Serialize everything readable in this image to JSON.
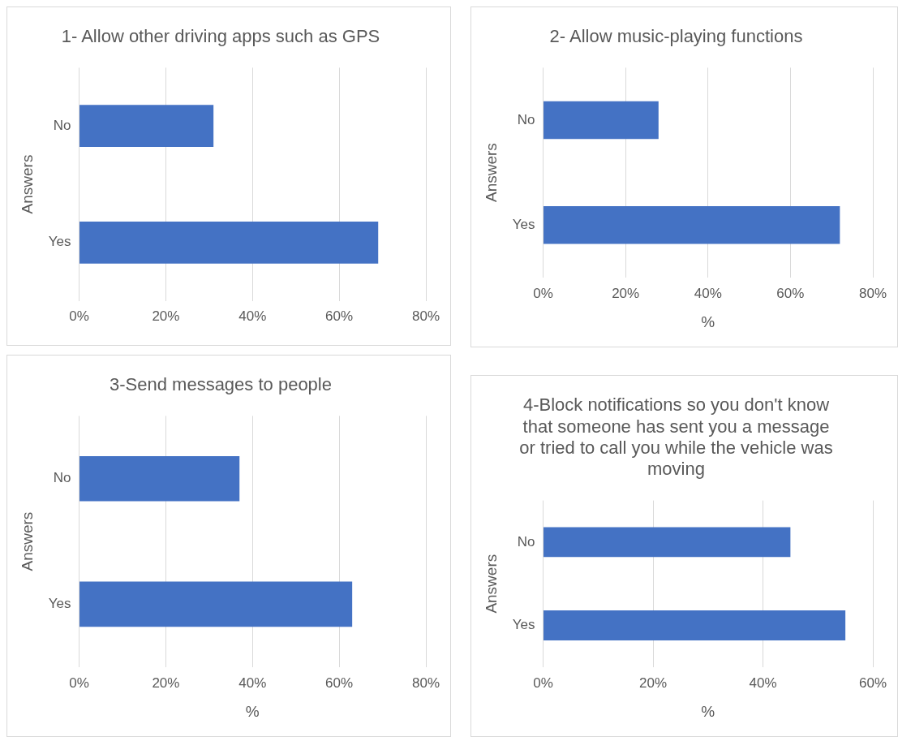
{
  "chart_data": [
    {
      "type": "bar",
      "orientation": "horizontal",
      "title": "1- Allow other driving apps such as GPS",
      "ylabel": "Answers",
      "categories": [
        "No",
        "Yes"
      ],
      "values": [
        31,
        69
      ],
      "color": "#4472c4",
      "xlim": [
        0,
        80
      ],
      "xticks": [
        {
          "value": 0,
          "label": "0%"
        },
        {
          "value": 20,
          "label": "20%"
        },
        {
          "value": 40,
          "label": "40%"
        },
        {
          "value": 60,
          "label": "60%"
        },
        {
          "value": 80,
          "label": "80%"
        }
      ],
      "grid": "x"
    },
    {
      "type": "bar",
      "orientation": "horizontal",
      "title": "2- Allow music-playing functions",
      "ylabel": "Answers",
      "xlabel": "%",
      "categories": [
        "No",
        "Yes"
      ],
      "values": [
        28,
        72
      ],
      "color": "#4472c4",
      "xlim": [
        0,
        80
      ],
      "xticks": [
        {
          "value": 0,
          "label": "0%"
        },
        {
          "value": 20,
          "label": "20%"
        },
        {
          "value": 40,
          "label": "40%"
        },
        {
          "value": 60,
          "label": "60%"
        },
        {
          "value": 80,
          "label": "80%"
        }
      ],
      "grid": "x"
    },
    {
      "type": "bar",
      "orientation": "horizontal",
      "title": "3-Send messages to people",
      "ylabel": "Answers",
      "xlabel": "%",
      "categories": [
        "No",
        "Yes"
      ],
      "values": [
        37,
        63
      ],
      "color": "#4472c4",
      "xlim": [
        0,
        80
      ],
      "xticks": [
        {
          "value": 0,
          "label": "0%"
        },
        {
          "value": 20,
          "label": "20%"
        },
        {
          "value": 40,
          "label": "40%"
        },
        {
          "value": 60,
          "label": "60%"
        },
        {
          "value": 80,
          "label": "80%"
        }
      ],
      "grid": "x"
    },
    {
      "type": "bar",
      "orientation": "horizontal",
      "title": "4-Block notifications so you don't know that someone has sent you a message or tried to call you while the vehicle was moving",
      "ylabel": "Answers",
      "xlabel": "%",
      "categories": [
        "No",
        "Yes"
      ],
      "values": [
        45,
        55
      ],
      "color": "#4472c4",
      "xlim": [
        0,
        60
      ],
      "xticks": [
        {
          "value": 0,
          "label": "0%"
        },
        {
          "value": 20,
          "label": "20%"
        },
        {
          "value": 40,
          "label": "40%"
        },
        {
          "value": 60,
          "label": "60%"
        }
      ],
      "grid": "x"
    }
  ]
}
